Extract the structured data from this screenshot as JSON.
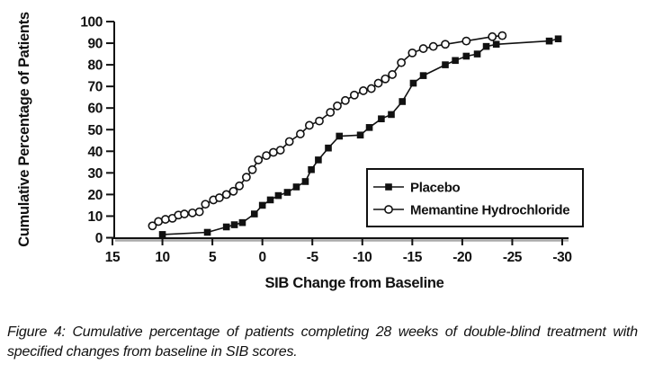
{
  "figure": {
    "caption": "Figure 4: Cumulative percentage of patients completing 28 weeks of double-blind treatment with specified changes from baseline in SIB scores."
  },
  "chart_data": {
    "type": "line",
    "title": "",
    "xlabel": "SIB Change from Baseline",
    "ylabel": "Cumulative Percentage of Patients",
    "xlim": [
      15,
      -30
    ],
    "ylim": [
      0,
      100
    ],
    "x_ticks": [
      15,
      10,
      5,
      0,
      -5,
      -10,
      -15,
      -20,
      -25,
      -30
    ],
    "y_ticks": [
      0,
      10,
      20,
      30,
      40,
      50,
      60,
      70,
      80,
      90,
      100
    ],
    "x_axis_reversed": true,
    "grid": false,
    "legend_position": "inside-lower-right",
    "line_color": "#111111",
    "axis_shadow_color": "#aaaaaa",
    "series": [
      {
        "name": "Placebo",
        "marker": "filled-square",
        "color": "#111111",
        "points": [
          [
            10,
            1.5
          ],
          [
            5.5,
            2.5
          ],
          [
            3.6,
            5
          ],
          [
            2.8,
            6
          ],
          [
            2,
            7
          ],
          [
            0.8,
            11
          ],
          [
            0,
            15
          ],
          [
            -0.8,
            17.5
          ],
          [
            -1.6,
            19.5
          ],
          [
            -2.5,
            21
          ],
          [
            -3.4,
            23.5
          ],
          [
            -4.3,
            26
          ],
          [
            -4.9,
            31.5
          ],
          [
            -5.6,
            36
          ],
          [
            -6.6,
            41.5
          ],
          [
            -7.7,
            47
          ],
          [
            -9.8,
            47.5
          ],
          [
            -10.7,
            51
          ],
          [
            -11.9,
            55
          ],
          [
            -12.9,
            57
          ],
          [
            -14,
            63
          ],
          [
            -15.1,
            71.5
          ],
          [
            -16.1,
            75
          ],
          [
            -18.3,
            80
          ],
          [
            -19.3,
            82
          ],
          [
            -20.4,
            84
          ],
          [
            -21.5,
            85
          ],
          [
            -22.4,
            88.5
          ],
          [
            -23.4,
            89.5
          ],
          [
            -28.7,
            91
          ],
          [
            -29.6,
            92
          ]
        ]
      },
      {
        "name": "Memantine Hydrochloride",
        "marker": "open-circle",
        "color": "#111111",
        "points": [
          [
            11,
            5.5
          ],
          [
            10.4,
            7.5
          ],
          [
            9.7,
            8.5
          ],
          [
            9,
            9
          ],
          [
            8.4,
            10.5
          ],
          [
            7.8,
            11
          ],
          [
            7,
            11.5
          ],
          [
            6.3,
            12
          ],
          [
            5.7,
            15.5
          ],
          [
            4.9,
            17.5
          ],
          [
            4.3,
            18.5
          ],
          [
            3.6,
            20
          ],
          [
            2.9,
            21.5
          ],
          [
            2.3,
            24
          ],
          [
            1.6,
            28
          ],
          [
            1,
            31.5
          ],
          [
            0.4,
            36
          ],
          [
            -0.4,
            38
          ],
          [
            -1.1,
            39.5
          ],
          [
            -1.8,
            40.5
          ],
          [
            -2.7,
            44.5
          ],
          [
            -3.8,
            48
          ],
          [
            -4.7,
            52
          ],
          [
            -5.7,
            54
          ],
          [
            -6.8,
            58
          ],
          [
            -7.5,
            61
          ],
          [
            -8.3,
            63.5
          ],
          [
            -9.2,
            66
          ],
          [
            -10.1,
            68
          ],
          [
            -10.9,
            69
          ],
          [
            -11.6,
            71.5
          ],
          [
            -12.3,
            73.5
          ],
          [
            -13,
            75.5
          ],
          [
            -13.9,
            81
          ],
          [
            -15,
            85.5
          ],
          [
            -16.1,
            87.5
          ],
          [
            -17.1,
            88.5
          ],
          [
            -18.3,
            89.5
          ],
          [
            -20.4,
            91
          ],
          [
            -23,
            93
          ],
          [
            -24,
            93.5
          ]
        ]
      }
    ]
  }
}
